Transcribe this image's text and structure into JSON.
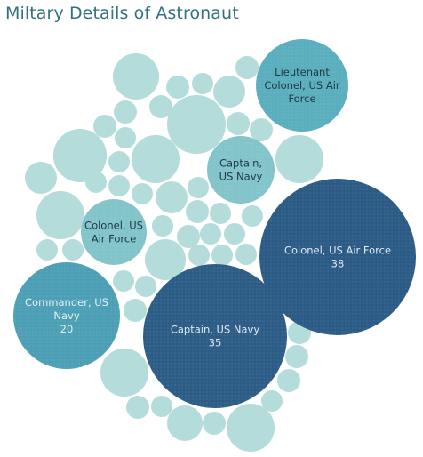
{
  "title": "Miltary Details of Astronaut",
  "chart_data": {
    "type": "bubble",
    "title": "Miltary Details of Astronaut",
    "series": [
      {
        "name": "Colonel, US Air Force",
        "value": 38,
        "label_lines": [
          "Colonel, US Air Force",
          "38"
        ],
        "color": "#2c5b86",
        "text_color": "#dfe9f2"
      },
      {
        "name": "Captain, US Navy",
        "value": 35,
        "label_lines": [
          "Captain, US Navy",
          "35"
        ],
        "color": "#2d5d86",
        "text_color": "#dfe9f2"
      },
      {
        "name": "Commander, US Navy",
        "value": 20,
        "label_lines": [
          "Commander, US",
          "Navy",
          "20"
        ],
        "color": "#4c9fb5",
        "text_color": "#e3f1f5"
      },
      {
        "name": "Lieutenant Colonel, US Air Force",
        "value": null,
        "label_lines": [
          "Lieutenant",
          "Colonel, US Air",
          "Force"
        ],
        "color": "#5aaebd",
        "text_color": "#1b3a45"
      },
      {
        "name": "Captain, US Navy (small)",
        "value": null,
        "label_lines": [
          "Captain,",
          "US Navy"
        ],
        "color": "#82c4c9",
        "text_color": "#1b3a45"
      },
      {
        "name": "Colonel, US Air Force (small)",
        "value": null,
        "label_lines": [
          "Colonel, US",
          "Air Force"
        ],
        "color": "#82c4c9",
        "text_color": "#1b3a45"
      }
    ],
    "minor_color": "#b3dcda"
  }
}
